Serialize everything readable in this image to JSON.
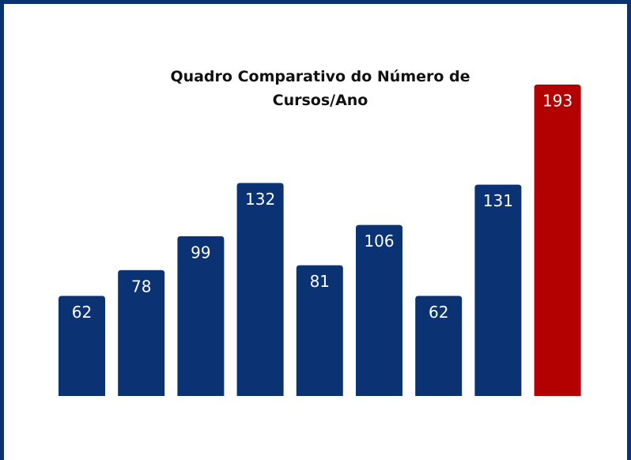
{
  "chart_data": {
    "type": "bar",
    "title": "Quadro Comparativo do Número de Cursos/Ano",
    "values": [
      62,
      78,
      99,
      132,
      81,
      106,
      62,
      131,
      193
    ],
    "colors": [
      "#0b3272",
      "#0b3272",
      "#0b3272",
      "#0b3272",
      "#0b3272",
      "#0b3272",
      "#0b3272",
      "#0b3272",
      "#b30000"
    ],
    "border_color": "#0b3272"
  }
}
